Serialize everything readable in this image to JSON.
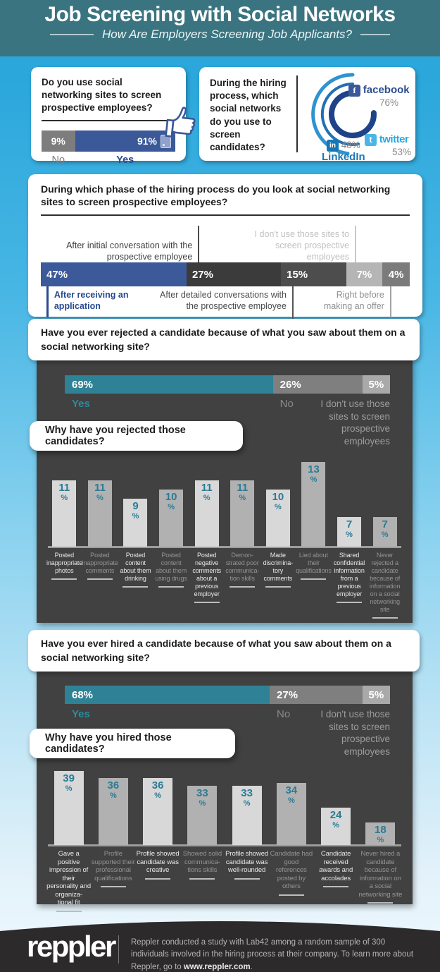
{
  "header": {
    "title": "Job Screening with Social Networks",
    "subtitle": "How Are Employers Screening Job Applicants?"
  },
  "usage_card": {
    "question": "Do you use social networking sites to screen prospective employees?"
  },
  "networks_card": {
    "question": "During the hiring process, which social networks do you use to screen candidates?"
  },
  "phase_card": {
    "question": "During which phase of the hiring process do you look at social networking sites to screen prospective employees?"
  },
  "rejected_section": {
    "question": "Have you ever rejected a candidate because of what you saw about them on a social networking site?",
    "why_question": "Why have you rejected those candidates?"
  },
  "hired_section": {
    "question": "Have you ever hired a candidate because of what you saw about them on a social networking site?",
    "why_question": "Why have you hired those candidates?"
  },
  "footer": {
    "brand": "reppler",
    "note_before": "Reppler conducted a study with Lab42 among a random sample of 300 individuals involved in the hiring process at their company. To learn more about Reppler, go to ",
    "note_link": "www.reppler.com",
    "note_after": "."
  },
  "colors": {
    "header_teal": "#3a7480",
    "background_top": "#2ba7db",
    "facebook_blue": "#3b5998",
    "twitter_blue": "#2aa9e0",
    "linkedin_blue": "#1b77b5",
    "accent_teal": "#2f8195",
    "panel_dark": "#414141"
  },
  "chart_data": [
    {
      "id": "screen_usage",
      "type": "bar",
      "orientation": "horizontal-stacked",
      "title": "Do you use social networking sites to screen prospective employees?",
      "categories": [
        "No",
        "Yes"
      ],
      "values": [
        9,
        91
      ],
      "unit": "%",
      "display_widths": [
        25,
        75
      ],
      "colors": [
        "#7d7d7d",
        "#3b5998"
      ]
    },
    {
      "id": "networks_used",
      "type": "bar",
      "orientation": "radial",
      "title": "During the hiring process, which social networks do you use to screen candidates?",
      "categories": [
        "facebook",
        "twitter",
        "LinkedIn"
      ],
      "values": [
        76,
        53,
        48
      ],
      "unit": "%",
      "colors": [
        "#1f4389",
        "#2170b4",
        "#2e93d0"
      ]
    },
    {
      "id": "hiring_phase",
      "type": "bar",
      "orientation": "horizontal-stacked",
      "title": "During which phase of the hiring process do you look at social networking sites to screen prospective employees?",
      "categories": [
        "After receiving an application",
        "After initial conversation with the prospective employee",
        "After detailed conversations with the prospective employee",
        "I don't use those sites to screen prospective employees",
        "Right before making an offer"
      ],
      "values": [
        47,
        27,
        15,
        7,
        4
      ],
      "unit": "%",
      "display_widths": [
        39.5,
        25.6,
        17.7,
        9.8,
        7.4
      ],
      "colors": [
        "#3c5a99",
        "#3b3b3b",
        "#4d4d4d",
        "#b5b5b5",
        "#7b7b7b"
      ]
    },
    {
      "id": "rejected_candidate",
      "type": "bar",
      "orientation": "horizontal-stacked",
      "title": "Have you ever rejected a candidate because of what you saw about them on a social networking site?",
      "categories": [
        "Yes",
        "No",
        "I don't use those sites to screen prospective employees"
      ],
      "values": [
        69,
        26,
        5
      ],
      "unit": "%",
      "display_widths": [
        64,
        27.5,
        8.5
      ],
      "colors": [
        "#2f8195",
        "#7f7f7f",
        "#a9a9a9"
      ]
    },
    {
      "id": "rejection_reasons",
      "type": "bar",
      "title": "Why have you rejected those candidates?",
      "categories": [
        "Posted inappropriate photos",
        "Posted inappropriate comments",
        "Posted content about them drinking",
        "Posted content about them using drugs",
        "Posted negative comments about a previous employer",
        "Demon- strated poor communica- tion skills",
        "Made discrimina- tory comments",
        "Lied about their qualifications",
        "Shared confidential information from a previous employer",
        "Never rejected a candidate because of information on a social networking site"
      ],
      "values": [
        11,
        11,
        9,
        10,
        11,
        11,
        10,
        13,
        7,
        7
      ],
      "unit": "%",
      "ylim": [
        0,
        13
      ],
      "colors": [
        "#d8d8d8",
        "#b1b1b1"
      ]
    },
    {
      "id": "hired_candidate",
      "type": "bar",
      "orientation": "horizontal-stacked",
      "title": "Have you ever hired a candidate because of what you saw about them on a social networking site?",
      "categories": [
        "Yes",
        "No",
        "I don't use those sites to screen prospective employees"
      ],
      "values": [
        68,
        27,
        5
      ],
      "unit": "%",
      "display_widths": [
        63,
        28.5,
        8.5
      ],
      "colors": [
        "#2f8195",
        "#7f7f7f",
        "#a9a9a9"
      ]
    },
    {
      "id": "hiring_reasons",
      "type": "bar",
      "title": "Why have you hired those candidates?",
      "categories": [
        "Gave a positive impression of their personality and organiza- tional fit",
        "Profile supported their professional qualifications",
        "Profile showed candidate was creative",
        "Showed solid communica- tions skills",
        "Profile showed candidate was well-rounded",
        "Candidate had good references posted by others",
        "Candidate received awards and accolades",
        "Never hired a candidate because of information on a social networking site"
      ],
      "values": [
        39,
        36,
        36,
        33,
        33,
        34,
        24,
        18
      ],
      "unit": "%",
      "ylim": [
        0,
        39
      ],
      "colors": [
        "#d8d8d8",
        "#b1b1b1"
      ]
    }
  ]
}
